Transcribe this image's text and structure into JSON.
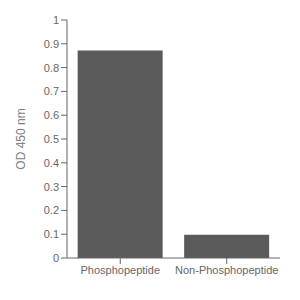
{
  "chart_data": {
    "type": "bar",
    "categories": [
      "Phosphopeptide",
      "Non-Phosphopeptide"
    ],
    "values": [
      0.872,
      0.098
    ],
    "color": "#5a5a5a",
    "ylabel": "OD 450 nm",
    "ylim": [
      0,
      1.0
    ],
    "yticks": [
      0,
      0.1,
      0.2,
      0.3,
      0.4,
      0.5,
      0.6,
      0.7,
      0.8,
      0.9,
      1
    ],
    "grid": false
  }
}
